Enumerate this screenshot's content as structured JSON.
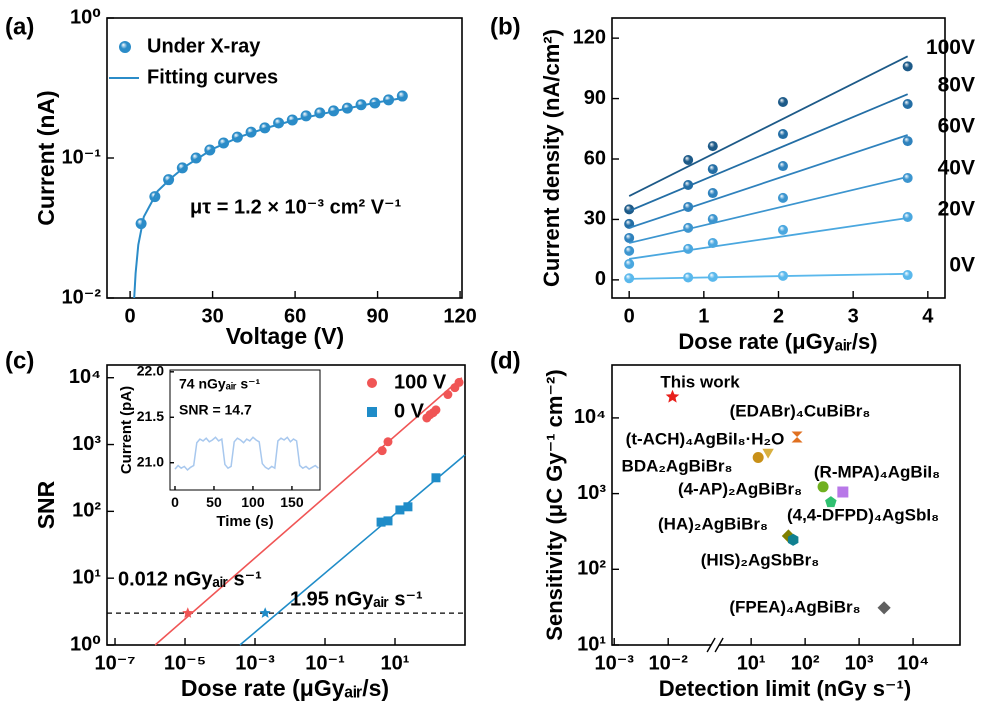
{
  "chart_data": [
    {
      "type": "scatter",
      "panel_label": "(a)",
      "xlabel": "Voltage (V)",
      "ylabel": "Current (nA)",
      "xlim": [
        -8.4,
        120.7
      ],
      "ylim": [
        0.01,
        1
      ],
      "ylog": true,
      "xticks": [
        0,
        30,
        60,
        90,
        120
      ],
      "yticks": [
        {
          "value": 0.01,
          "label": "10⁻²"
        },
        {
          "value": 0.1,
          "label": "10⁻¹"
        },
        {
          "value": 1,
          "label": "10⁰"
        }
      ],
      "annotation": "μτ = 1.2 × 10⁻³ cm² V⁻¹",
      "legend": "upper left",
      "series": [
        {
          "name": "Under X-ray",
          "kind": "scatter",
          "color": "#2b8cc8",
          "x": [
            4,
            9,
            14,
            19,
            24,
            29,
            34,
            39,
            44,
            49,
            54,
            59,
            64,
            69,
            74,
            79,
            84,
            89,
            94,
            99
          ],
          "values": [
            0.034,
            0.053,
            0.07,
            0.085,
            0.1,
            0.114,
            0.128,
            0.141,
            0.153,
            0.164,
            0.178,
            0.187,
            0.2,
            0.21,
            0.217,
            0.227,
            0.24,
            0.247,
            0.26,
            0.277
          ]
        },
        {
          "name": "Fitting curves",
          "kind": "line",
          "color": "#2b8cc8",
          "x": [
            1.5,
            2,
            3,
            5,
            10,
            15,
            20,
            30,
            40,
            50,
            60,
            70,
            80,
            90,
            100
          ],
          "values": [
            0.01,
            0.015,
            0.024,
            0.038,
            0.058,
            0.072,
            0.087,
            0.116,
            0.142,
            0.165,
            0.187,
            0.207,
            0.228,
            0.25,
            0.27
          ]
        }
      ]
    },
    {
      "type": "scatter",
      "panel_label": "(b)",
      "xlabel": "Dose rate (μGyₐᵢᵣ/s)",
      "ylabel": "Current density (nA/cm²)",
      "xlim": [
        -0.23,
        4.23
      ],
      "ylim": [
        -9,
        130
      ],
      "xticks": [
        0,
        1,
        2,
        3,
        4
      ],
      "yticks": [
        0,
        30,
        60,
        90,
        120
      ],
      "x": [
        0,
        0.79,
        1.12,
        2.06,
        3.73
      ],
      "fit_x": [
        0,
        3.73
      ],
      "series": [
        {
          "name": "100V",
          "color": "#1d5a88",
          "values": [
            35,
            59.5,
            66.4,
            88.3,
            106
          ],
          "fit": [
            41.6,
            111
          ]
        },
        {
          "name": "80V",
          "color": "#236ea5",
          "values": [
            27.8,
            47.1,
            55,
            72.4,
            87.3
          ],
          "fit": [
            34.2,
            92.2
          ]
        },
        {
          "name": "60V",
          "color": "#2f82bd",
          "values": [
            20.8,
            36.2,
            43.1,
            56.5,
            68.9
          ],
          "fit": [
            25.8,
            71.9
          ]
        },
        {
          "name": "40V",
          "color": "#3c95cf",
          "values": [
            14.4,
            25.8,
            30.2,
            40.7,
            50.6
          ],
          "fit": [
            18.3,
            51.1
          ]
        },
        {
          "name": "20V",
          "color": "#4aa7df",
          "values": [
            7.9,
            15.4,
            18.3,
            24.8,
            31.2
          ],
          "fit": [
            10.4,
            30.7
          ]
        },
        {
          "name": "0V",
          "color": "#5ab8ec",
          "values": [
            0.8,
            1.2,
            1.5,
            2,
            2.4
          ],
          "fit": [
            0.5,
            3
          ]
        }
      ]
    },
    {
      "type": "scatter",
      "panel_label": "(c)",
      "xlabel": "Dose rate (μGyₐᵢᵣ/s)",
      "ylabel": "SNR",
      "xlog": true,
      "ylog": true,
      "xlim": [
        5.9e-08,
        1000
      ],
      "ylim": [
        1,
        15500
      ],
      "xticks": [
        {
          "value": 1e-07,
          "label": "10⁻⁷"
        },
        {
          "value": 1e-05,
          "label": "10⁻⁵"
        },
        {
          "value": 0.001,
          "label": "10⁻³"
        },
        {
          "value": 0.1,
          "label": "10⁻¹"
        },
        {
          "value": 10,
          "label": "10¹"
        }
      ],
      "yticks": [
        {
          "value": 1,
          "label": "10⁰"
        },
        {
          "value": 10,
          "label": "10¹"
        },
        {
          "value": 100,
          "label": "10²"
        },
        {
          "value": 1000,
          "label": "10³"
        },
        {
          "value": 10000,
          "label": "10⁴"
        }
      ],
      "threshold": 3,
      "legend": "upper right",
      "series": [
        {
          "name": "100 V",
          "color": "#f05555",
          "marker": "circle",
          "x": [
            4.3,
            6.3,
            81,
            100,
            123,
            148,
            324,
            513,
            676
          ],
          "values": [
            810,
            1100,
            2500,
            2800,
            3000,
            3300,
            5600,
            7100,
            8500
          ],
          "fit_x": [
            1.4e-06,
            813
          ],
          "fit": [
            1,
            10000
          ],
          "limit_x": 1.2e-05,
          "limit_label": "0.012 nGyₐᵢᵣ s⁻¹"
        },
        {
          "name": "0 V",
          "color": "#1f8cc8",
          "marker": "square",
          "x": [
            4,
            6.3,
            13.8,
            23.4,
            148
          ],
          "values": [
            69,
            72,
            105,
            117,
            318
          ],
          "fit_x": [
            0.00037,
            1000
          ],
          "fit": [
            1,
            700
          ],
          "limit_x": 0.00195,
          "limit_label": "1.95 nGyₐᵢᵣ s⁻¹"
        }
      ]
    },
    {
      "type": "scatter",
      "panel_label": "(d)",
      "xlabel": "Detection limit (nGy s⁻¹)",
      "ylabel": "Sensitivity (μC Gy⁻¹ cm⁻²)",
      "xlog": true,
      "ylog": true,
      "xlim": [
        0.00091,
        74000
      ],
      "xbreak": [
        0.074,
        2.15
      ],
      "ylim": [
        10,
        50000
      ],
      "xticks": [
        {
          "value": 0.001,
          "label": "10⁻³"
        },
        {
          "value": 0.01,
          "label": "10⁻²"
        },
        {
          "value": 10,
          "label": "10¹"
        },
        {
          "value": 100,
          "label": "10²"
        },
        {
          "value": 1000,
          "label": "10³"
        },
        {
          "value": 10000,
          "label": "10⁴"
        }
      ],
      "yticks": [
        {
          "value": 10,
          "label": "10¹"
        },
        {
          "value": 100,
          "label": "10²"
        },
        {
          "value": 1000,
          "label": "10³"
        },
        {
          "value": 10000,
          "label": "10⁴"
        }
      ],
      "labels": [
        "This work",
        "(EDABr)₄CuBiBr₈",
        "(t-ACH)₄AgBiI₈·H₂O",
        "BDA₂AgBiBr₈",
        "(R-MPA)₄AgBiI₈",
        "(4-AP)₂AgBiBr₈",
        "(4,4-DFPD)₄AgSbI₈",
        "(HA)₂AgBiBr₈",
        "(HIS)₂AgSbBr₈",
        "(FPEA)₄AgBiBr₈"
      ],
      "x": [
        0.012,
        71,
        20.6,
        13.5,
        500,
        215,
        300,
        49,
        60,
        2900
      ],
      "values": [
        19000,
        5600,
        3550,
        3000,
        1050,
        1230,
        770,
        275,
        245,
        31
      ],
      "colors": [
        "#e8201c",
        "#e07020",
        "#d9b040",
        "#c89018",
        "#b878e8",
        "#70b020",
        "#30c070",
        "#808000",
        "#108090",
        "#606060"
      ],
      "markers": [
        "star",
        "bowtie",
        "triangle",
        "circle",
        "square",
        "circle",
        "pentagon",
        "diamond",
        "hexagon",
        "diamond"
      ]
    },
    {
      "type": "line",
      "title": "74 nGyₐᵢᵣ s⁻¹",
      "subtitle": "SNR = 14.7",
      "xlabel": "Time (s)",
      "ylabel": "Current (pA)",
      "xlim": [
        -6.4,
        186
      ],
      "ylim": [
        20.7,
        22.02
      ],
      "xticks": [
        0,
        50,
        100,
        150
      ],
      "yticks": [
        {
          "value": 21,
          "label": "21.0"
        },
        21.5,
        {
          "value": 22,
          "label": "22.0"
        }
      ],
      "color": "#a8c8ee",
      "x": [
        0,
        4,
        8,
        12,
        16,
        20,
        24,
        28,
        32,
        36,
        40,
        44,
        48,
        52,
        56,
        60,
        64,
        68,
        72,
        76,
        80,
        84,
        88,
        92,
        96,
        100,
        104,
        108,
        112,
        116,
        120,
        124,
        128,
        132,
        136,
        140,
        144,
        148,
        152,
        156,
        160,
        164,
        168,
        172,
        176,
        180,
        184
      ],
      "values": [
        20.93,
        20.97,
        20.94,
        20.96,
        20.92,
        20.95,
        20.97,
        21.22,
        21.26,
        21.24,
        21.27,
        21.23,
        21.25,
        21.28,
        21.24,
        21.26,
        20.98,
        20.94,
        20.96,
        21.23,
        21.27,
        21.25,
        21.22,
        21.26,
        21.24,
        21.28,
        21.25,
        21.23,
        20.99,
        20.95,
        20.93,
        20.96,
        20.94,
        21.24,
        21.27,
        21.25,
        21.28,
        21.23,
        21.26,
        21.24,
        20.97,
        20.94,
        20.96,
        20.93,
        20.95,
        20.97,
        20.94
      ]
    }
  ]
}
